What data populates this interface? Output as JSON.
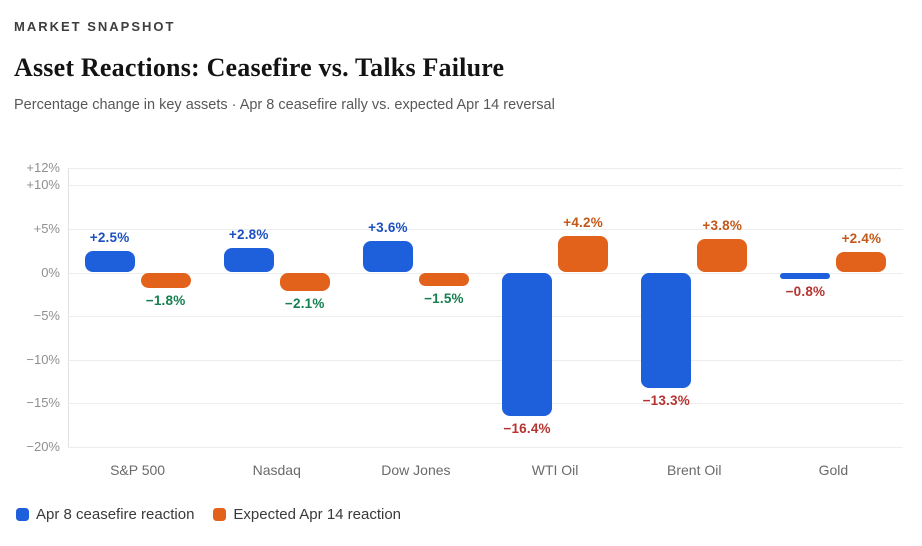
{
  "header": {
    "eyebrow": "MARKET SNAPSHOT",
    "title": "Asset Reactions: Ceasefire vs. Talks Failure",
    "subtitle": "Percentage change in key assets  ·  Apr 8 ceasefire rally vs. expected Apr 14 reversal"
  },
  "chart_data": {
    "type": "bar",
    "title": "Asset Reactions: Ceasefire vs. Talks Failure",
    "xlabel": "",
    "ylabel": "Percentage change",
    "categories": [
      "S&P 500",
      "Nasdaq",
      "Dow Jones",
      "WTI Oil",
      "Brent Oil",
      "Gold"
    ],
    "series": [
      {
        "key": "apr8",
        "name": "Apr 8 ceasefire reaction",
        "color": "#1e5fdc",
        "values": [
          2.5,
          2.8,
          3.6,
          -16.4,
          -13.3,
          -0.8
        ],
        "labels": [
          "+2.5%",
          "+2.8%",
          "+3.6%",
          "−16.4%",
          "−13.3%",
          "−0.8%"
        ],
        "label_colors": [
          "#1d4fc0",
          "#1d4fc0",
          "#1d4fc0",
          "#b53431",
          "#b53431",
          "#b53431"
        ]
      },
      {
        "key": "apr14",
        "name": "Expected Apr 14 reaction",
        "color": "#e2621c",
        "values": [
          -1.8,
          -2.1,
          -1.5,
          4.2,
          3.8,
          2.4
        ],
        "labels": [
          "−1.8%",
          "−2.1%",
          "−1.5%",
          "+4.2%",
          "+3.8%",
          "+2.4%"
        ],
        "label_colors": [
          "#15804f",
          "#15804f",
          "#15804f",
          "#c2581a",
          "#c2581a",
          "#c2581a"
        ]
      }
    ],
    "ylim": [
      -20,
      12
    ],
    "yticks": [
      {
        "value": 12,
        "label": "+12%"
      },
      {
        "value": 10,
        "label": "+10%"
      },
      {
        "value": 5,
        "label": "+5%"
      },
      {
        "value": 0,
        "label": "0%"
      },
      {
        "value": -5,
        "label": "−5%"
      },
      {
        "value": -10,
        "label": "−10%"
      },
      {
        "value": -15,
        "label": "−15%"
      },
      {
        "value": -20,
        "label": "−20%"
      }
    ],
    "grid": true,
    "legend_position": "bottom-left"
  }
}
